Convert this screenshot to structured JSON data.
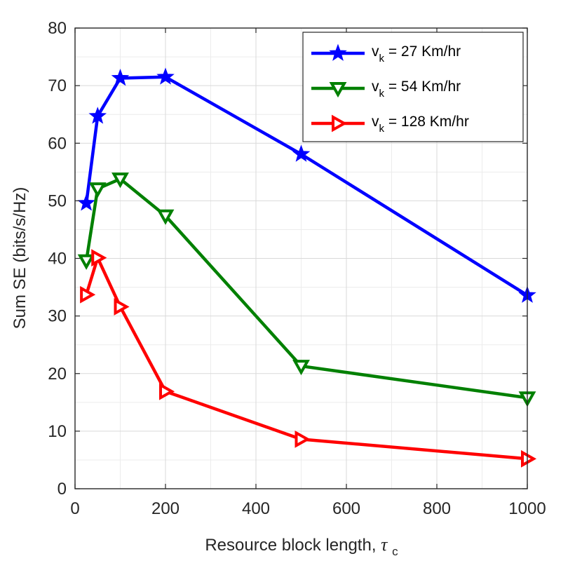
{
  "chart_data": {
    "type": "line",
    "title": "",
    "xlabel": "Resource block length, ",
    "xlabel_symbol": "τ",
    "xlabel_subscript": "c",
    "ylabel": "Sum SE (bits/s/Hz)",
    "xlim": [
      0,
      1000
    ],
    "ylim": [
      0,
      80
    ],
    "xticks": [
      0,
      200,
      400,
      600,
      800,
      1000
    ],
    "yticks": [
      0,
      10,
      20,
      30,
      40,
      50,
      60,
      70,
      80
    ],
    "x_minor_step": 100,
    "y_minor_step": 5,
    "grid": true,
    "legend_position": "top-right",
    "series": [
      {
        "name": "v_k = 27 Km/hr",
        "legend_prefix": "v",
        "legend_subscript": "k",
        "legend_suffix": " = 27 Km/hr",
        "color": "#0000ff",
        "marker": "star",
        "x": [
          25,
          50,
          100,
          200,
          500,
          1000
        ],
        "y": [
          49.6,
          64.7,
          71.3,
          71.5,
          58.1,
          33.6
        ]
      },
      {
        "name": "v_k = 54 Km/hr",
        "legend_prefix": "v",
        "legend_subscript": "k",
        "legend_suffix": " = 54 Km/hr",
        "color": "#008000",
        "marker": "triangle-down",
        "x": [
          25,
          50,
          100,
          200,
          500,
          1000
        ],
        "y": [
          39.6,
          52.1,
          53.8,
          47.4,
          21.3,
          15.8
        ]
      },
      {
        "name": "v_k = 128 Km/hr",
        "legend_prefix": "v",
        "legend_subscript": "k",
        "legend_suffix": " = 128 Km/hr",
        "color": "#ff0000",
        "marker": "triangle-right",
        "x": [
          25,
          50,
          100,
          200,
          500,
          1000
        ],
        "y": [
          33.7,
          40.1,
          31.6,
          16.9,
          8.6,
          5.2
        ]
      }
    ]
  }
}
